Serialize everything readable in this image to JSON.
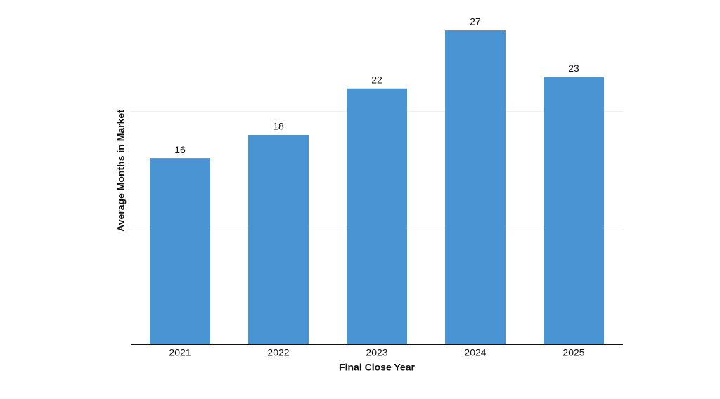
{
  "chart_data": {
    "type": "bar",
    "x_label": "Final Close Year",
    "y_label": "Average Months in Market",
    "categories": [
      "2021",
      "2022",
      "2023",
      "2024",
      "2025"
    ],
    "values": [
      16,
      18,
      22,
      27,
      23
    ],
    "color": "#4a94d4",
    "ylim": [
      0,
      27
    ],
    "yticks": [
      10,
      20
    ],
    "show_ytick_labels": false,
    "grid": true,
    "value_labels_shown": true
  }
}
